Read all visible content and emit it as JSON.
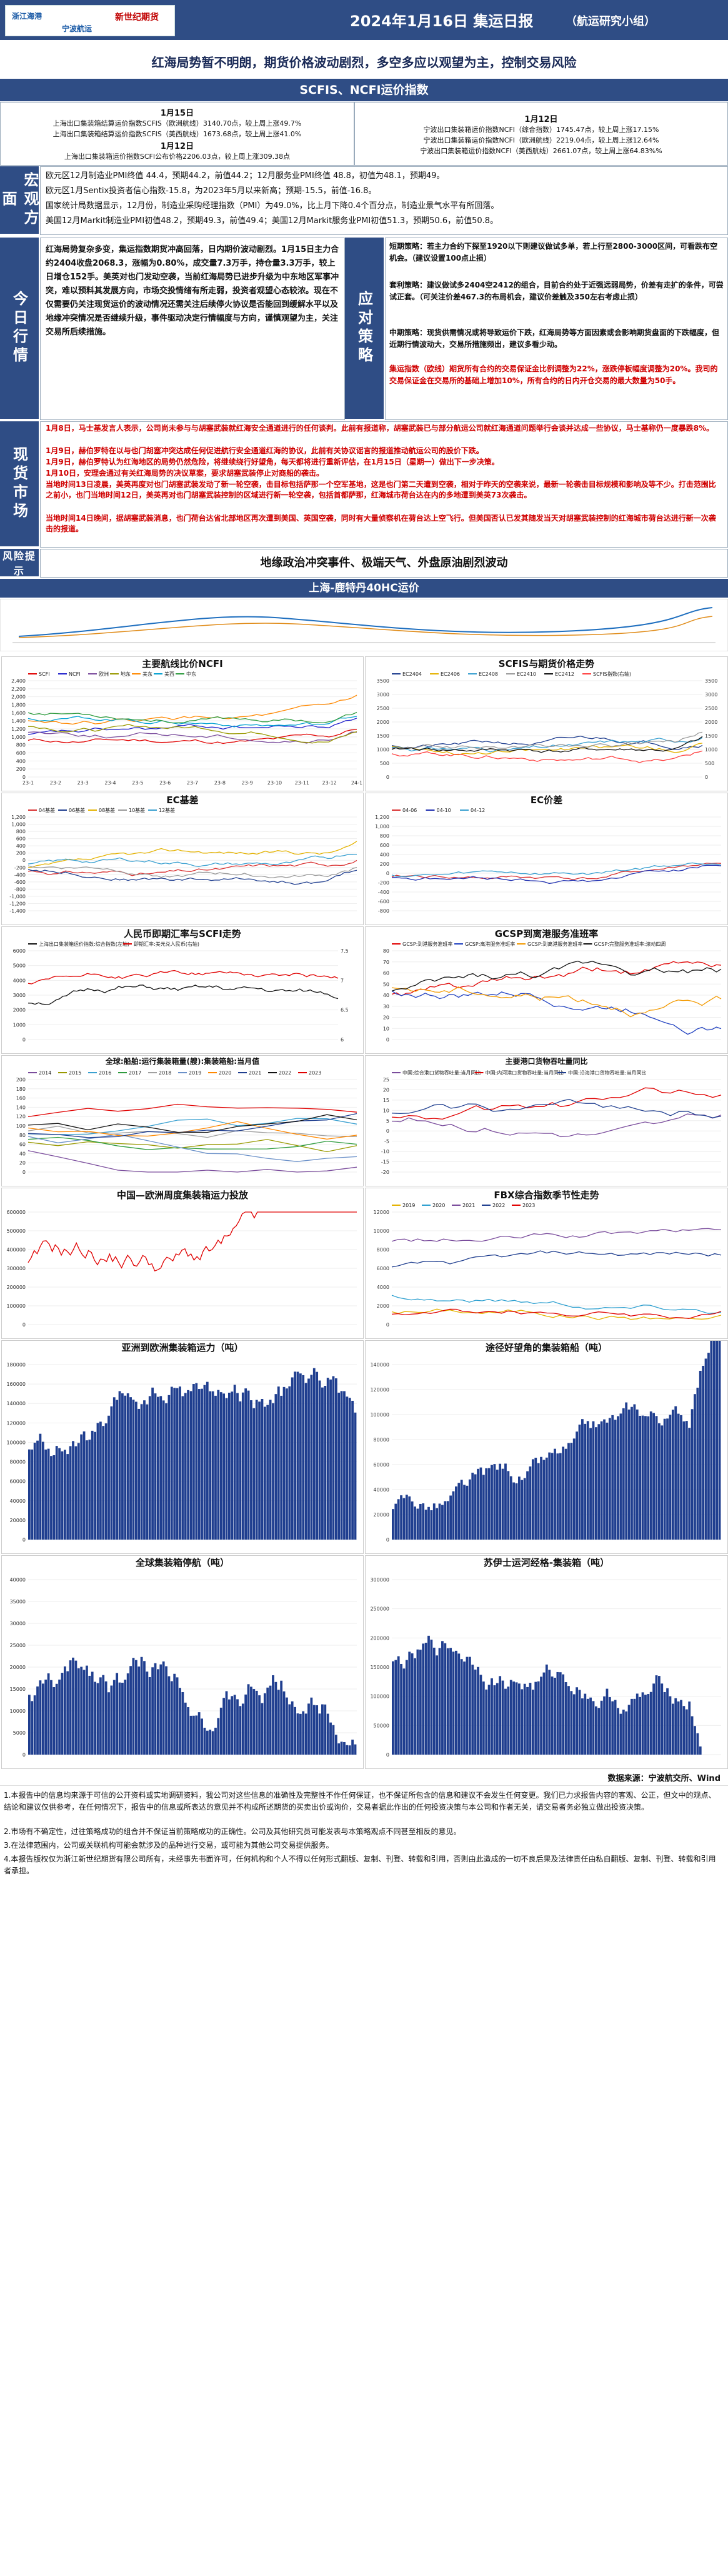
{
  "header": {
    "logos": [
      "浙江海港",
      "宁波航运",
      "新世纪期货"
    ],
    "title": "2024年1月16日 集运日报",
    "team": "（航运研究小组）"
  },
  "headline": "红海局势暂不明朗，期货价格波动剧烈，多空多应以观望为主，控制交易风险",
  "indices": {
    "section_title": "SCFIS、NCFI运价指数",
    "left": {
      "date1": "1月15日",
      "l1": "上海出口集装箱结算运价指数SCFIS（欧洲航线）3140.70点，较上周上涨49.7%",
      "l2": "上海出口集装箱结算运价指数SCFIS（美西航线）1673.68点，较上周上涨41.0%",
      "date2": "1月12日",
      "l3": "上海出口集装箱运价指数SCFI公布价格2206.03点，较上周上涨309.38点"
    },
    "right": {
      "date": "1月12日",
      "l1": "宁波出口集装箱运价指数NCFI（综合指数）1745.47点，较上周上涨17.15%",
      "l2": "宁波出口集装箱运价指数NCFI（欧洲航线）2219.04点，较上周上涨12.64%",
      "l3": "宁波出口集装箱运价指数NCFI（美西航线）2661.07点，较上周上涨64.83%%"
    }
  },
  "macro": {
    "label": "宏观方面",
    "lines": [
      "欧元区12月制造业PMI终值 44.4，预期44.2，前值44.2；12月服务业PMI终值 48.8，初值为48.1，预期49。",
      "欧元区1月Sentix投资者信心指数-15.8，为2023年5月以来新高；预期-15.5，前值-16.8。",
      "国家统计局数据显示，12月份，制造业采购经理指数（PMI）为49.0%，比上月下降0.4个百分点，制造业景气水平有所回落。",
      "美国12月Markit制造业PMI初值48.2，预期49.3，前值49.4；美国12月Markit服务业PMI初值51.3，预期50.6，前值50.8。"
    ]
  },
  "today": {
    "label": "今日行情",
    "text": "红海局势复杂多变，集运指数期货冲高回落，日内期价波动剧烈。1月15日主力合约2404收盘2068.3，涨幅为0.80%，成交量7.3万手，持仓量3.3万手，较上日增仓152手。美英对也门发动空袭，当前红海局势已进步升级为中东地区军事冲突，难以预料其发展方向，市场交投情绪有所走弱，投资者观望心态较浓。现在不仅需要仍关注现货运价的波动情况还需关注后续停火协议是否能回到缓解水平以及地缘冲突情况是否继续升级，事件驱动决定行情幅度与方向，谨慎观望为主，关注交易所后续措施。"
  },
  "strategy": {
    "label": "应对策略",
    "short": "短期策略：若主力合约下探至1920以下则建议做试多单，若上行至2800-3000区间，可看跌布空机会。（建议设置100点止损）",
    "arb": "套利策略：建议做试多2404空2412的组合，目前合约处于近强远弱局势，价差有走扩的条件，可尝试正套。（可关注价差467.3的布局机会，建议价差触及350左右考虑止损）",
    "mid": "中期策略：现货供需情况或将导致运价下跌，红海局势等方面因素或会影响期货盘面的下跌幅度，但近期行情波动大，交易所措施频出，建议多看少动。",
    "risk": "集运指数（欧线）期货所有合约的交易保证金比例调整为22%，涨跌停板幅度调整为20%。我司的交易保证金在交易所的基础上增加10%，所有合约的日内开仓交易的最大数量为50手。"
  },
  "market": {
    "label": "现货市场",
    "p1": "1月8日，马士基发言人表示，公司尚未参与与胡塞武装就红海安全通道进行的任何谈判。此前有报道称，胡塞武装已与部分航运公司就红海通道问题举行会谈并达成一些协议，马士基称仍一度暴跌8%。",
    "p2": "1月9日，赫伯罗特在以与也门胡塞冲突达成任何促进航行安全通道红海的协议，此前有关协议谣言的报道推动航运公司的股价下跌。",
    "p3": "1月9日，赫伯罗特认为红海地区的局势仍然危险，将继续绕行好望角，每天都将进行重新评估，在1月15日（星期一）做出下一步决策。",
    "p4": "1月10日，安理会通过有关红海局势的决议草案，要求胡塞武装停止对商船的袭击。",
    "p5": "当地时间13日凌晨，美英再度对也门胡塞武装发动了新一轮空袭，击目标包括萨那一个空军基地，这是也门第二天遭到空袭，相对于昨天的空袭来说，最新一轮袭击目标规模和影响及等不少。打击范围比之前小，也门当地时间12日，美英再对也门胡塞武装控制的区域进行新一轮空袭，包括首都萨那，红海城市荷台达在内的多地遭到美英73次袭击。",
    "p6": "当地时间14日晚间，据胡塞武装消息，也门荷台达省北部地区再次遭到美国、英国空袭，同时有大量侦察机在荷台达上空飞行。但美国否认已发其随发当天对胡塞武装控制的红海城市荷台达进行新一次袭击的报道。"
  },
  "risk": {
    "label": "风险提示",
    "text": "地缘政治冲突事件、极端天气、外盘原油剧烈波动"
  },
  "shipping_title": "上海-鹿特丹40HC运价",
  "charts": {
    "ncfi": {
      "title": "主要航线比价NCFI",
      "series_names": [
        "SCFI",
        "NCFI",
        "欧洲",
        "地东",
        "美东",
        "美西",
        "中东"
      ],
      "colors": [
        "#e00000",
        "#2222cc",
        "#7a4c9c",
        "#999900",
        "#ff8800",
        "#00a0d0",
        "#2e9b3e"
      ],
      "ticks": [
        "23-1",
        "23-2",
        "23-3",
        "23-4",
        "23-5",
        "23-6",
        "23-7",
        "23-8",
        "23-9",
        "23-10",
        "23-11",
        "23-12",
        "24-1"
      ],
      "y": [
        "0",
        "200",
        "400",
        "600",
        "800",
        "1,000",
        "1,200",
        "1,400",
        "1,600",
        "1,800",
        "2,000",
        "2,200",
        "2,400"
      ]
    },
    "scfis": {
      "title": "SCFIS与期货价格走势",
      "series_names": [
        "EC2404",
        "EC2406",
        "EC2408",
        "EC2410",
        "EC2412",
        "SCFIS指数(右轴)"
      ],
      "colors": [
        "#1f3e8f",
        "#e4b200",
        "#3aa0d0",
        "#9a9a9a",
        "#111111",
        "#ff4040"
      ],
      "y_left": [
        "0",
        "500",
        "1000",
        "1500",
        "2000",
        "2500",
        "3000",
        "3500"
      ],
      "y_right": [
        "0",
        "500",
        "1000",
        "1500",
        "2000",
        "2500",
        "3000",
        "3500"
      ]
    },
    "ec_basis": {
      "title": "EC基差",
      "series_names": [
        "04基差",
        "06基差",
        "08基差",
        "10基差",
        "12基差"
      ],
      "colors": [
        "#d93030",
        "#1f3e8f",
        "#e4b200",
        "#9a9a9a",
        "#3aa0d0"
      ],
      "y": [
        "-1,400",
        "-1,200",
        "-1,000",
        "-800",
        "-600",
        "-400",
        "-200",
        "0",
        "200",
        "400",
        "600",
        "800",
        "1,000",
        "1,200"
      ]
    },
    "ec_spread": {
      "title": "EC价差",
      "series_names": [
        "04-06",
        "04-10",
        "04-12"
      ],
      "colors": [
        "#d93030",
        "#2030b0",
        "#3aa0d0"
      ],
      "y": [
        "-800",
        "-600",
        "-400",
        "-200",
        "0",
        "200",
        "400",
        "600",
        "800",
        "1,000",
        "1,200"
      ]
    },
    "rmb": {
      "title": "人民币即期汇率与SCFI走势",
      "series_names": [
        "上海出口集装箱运价指数:综合指数(左轴)",
        "即期汇率:美元兑人民币(右轴)"
      ],
      "colors": [
        "#111111",
        "#e00000"
      ],
      "y_left": [
        "0",
        "1000",
        "2000",
        "3000",
        "4000",
        "5000",
        "6000"
      ],
      "y_right": [
        "6",
        "6.5",
        "7",
        "7.5"
      ]
    },
    "gcsp": {
      "title": "GCSP到离港服务准班率",
      "series_names": [
        "GCSP:到港服务准班率",
        "GCSP:离港服务准班率",
        "GCSP:到离港服务准班率",
        "GCSP:完整服务准班率:滚动四周"
      ],
      "colors": [
        "#e00000",
        "#2040c0",
        "#f39a00",
        "#111111"
      ],
      "y": [
        "0",
        "10",
        "20",
        "30",
        "40",
        "50",
        "60",
        "70",
        "80"
      ]
    },
    "idle": {
      "title": "全球:船舶:运行集装箱量(艘):集装箱船:当月值",
      "series_names": [
        "2014",
        "2015",
        "2016",
        "2017",
        "2018",
        "2019",
        "2020",
        "2021",
        "2022",
        "2023"
      ],
      "colors": [
        "#7a4c9c",
        "#999900",
        "#3aa0d0",
        "#2e9b3e",
        "#a0a0a0",
        "#6a90c8",
        "#ff8800",
        "#1f3e8f",
        "#111111",
        "#e00000"
      ],
      "y": [
        "0",
        "20",
        "40",
        "60",
        "80",
        "100",
        "120",
        "140",
        "160",
        "180",
        "200"
      ]
    },
    "port": {
      "title": "主要港口货物吞吐量同比",
      "series_names": [
        "中国:综合港口货物吞吐量:当月同比",
        "中国:内河港口货物吞吐量:当月同比",
        "中国:沿海港口货物吞吐量:当月同比"
      ],
      "colors": [
        "#7a4c9c",
        "#e00000",
        "#1f3e8f"
      ],
      "y": [
        "-20",
        "-15",
        "-10",
        "-5",
        "0",
        "5",
        "10",
        "15",
        "20",
        "25"
      ]
    },
    "capacity": {
      "title": "中国—欧洲周度集装箱运力投放",
      "color": "#e00000",
      "y": [
        "0",
        "100000",
        "200000",
        "300000",
        "400000",
        "500000",
        "600000"
      ]
    },
    "fbx": {
      "title": "FBX综合指数季节性走势",
      "series_names": [
        "2019",
        "2020",
        "2021",
        "2022",
        "2023"
      ],
      "colors": [
        "#e4b200",
        "#2ea0d0",
        "#7a4c9c",
        "#1f3e8f",
        "#e00000"
      ],
      "y": [
        "0",
        "2000",
        "4000",
        "6000",
        "8000",
        "10000",
        "12000"
      ]
    },
    "asia_eu": {
      "title": "亚洲到欧洲集装箱运力（吨）",
      "color": "#1f3e8f",
      "y": [
        "0",
        "20000",
        "40000",
        "60000",
        "80000",
        "100000",
        "120000",
        "140000",
        "160000",
        "180000"
      ]
    },
    "cape": {
      "title": "途径好望角的集装箱船（吨）",
      "color": "#1f3e8f",
      "y": [
        "0",
        "20000",
        "40000",
        "60000",
        "80000",
        "100000",
        "120000",
        "140000"
      ]
    },
    "laid_up": {
      "title": "全球集装箱停航（吨）",
      "color": "#1f3e8f",
      "y": [
        "0",
        "5000",
        "10000",
        "15000",
        "20000",
        "25000",
        "30000",
        "35000",
        "40000"
      ]
    },
    "suez": {
      "title": "苏伊士运河经格-集装箱（吨）",
      "color": "#1f3e8f",
      "y": [
        "0",
        "50000",
        "100000",
        "150000",
        "200000",
        "250000",
        "300000"
      ]
    }
  },
  "source": "数据来源：宁波航交所、Wind",
  "footer": [
    "1.本报告中的信息均来源于可信的公开资料或实地调研资料，我公司对这些信息的准确性及完整性不作任何保证，也不保证所包含的信息和建议不会发生任何变更。我们已力求报告内容的客观、公正，但文中的观点、结论和建议仅供参考，在任何情况下，报告中的信息或所表达的意见并不构成所述期货的买卖出价或询价，交易者据此作出的任何投资决策与本公司和作者无关，请交易者务必独立做出投资决策。",
    "2.市场有不确定性，过往策略成功的组合并不保证当前策略成功的正确性。公司及其他研究员可能发表与本策略观点不同甚至相反的意见。",
    "3.在法律范围内，公司或关联机构可能会就涉及的品种进行交易，或可能为其他公司交易提供服务。",
    "4.本报告版权仅为浙江新世纪期货有限公司所有，未经事先书面许可，任何机构和个人不得以任何形式翻版、复制、刊登、转载和引用，否则由此造成的一切不良后果及法律责任由私自翻版、复制、刊登、转载和引用者承担。"
  ]
}
